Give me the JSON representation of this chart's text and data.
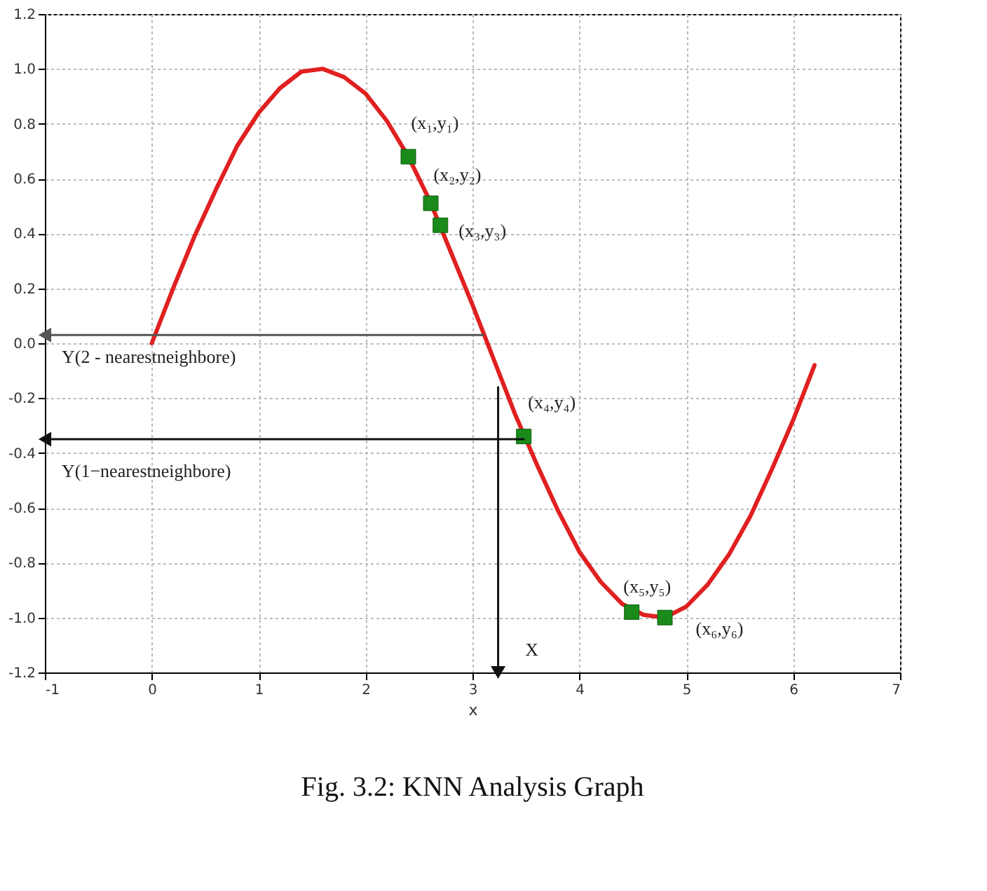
{
  "chart_data": {
    "type": "line",
    "title": "Fig. 3.2: KNN Analysis Graph",
    "xlabel": "x",
    "xlim": [
      -1,
      7
    ],
    "ylim": [
      -1.2,
      1.2
    ],
    "xticks": [
      -1,
      0,
      1,
      2,
      3,
      4,
      5,
      6,
      7
    ],
    "yticks": [
      {
        "value": -1.2,
        "label": "-1.2"
      },
      {
        "value": -1.0,
        "label": "-1.0"
      },
      {
        "value": -0.8,
        "label": "-0.8"
      },
      {
        "value": -0.6,
        "label": "-0.6"
      },
      {
        "value": -0.4,
        "label": "-0.4"
      },
      {
        "value": -0.2,
        "label": "-0.2"
      },
      {
        "value": 0,
        "label": "0.0"
      },
      {
        "value": 0.2,
        "label": "0.2"
      },
      {
        "value": 0.4,
        "label": "0.4"
      },
      {
        "value": 0.6,
        "label": "0.6"
      },
      {
        "value": 0.8,
        "label": "0.8"
      },
      {
        "value": 1.0,
        "label": "1.0"
      },
      {
        "value": 1.2,
        "label": "1.2"
      }
    ],
    "grid": true,
    "line_style": "solid",
    "series": [
      {
        "color": "#e02020",
        "x": [
          0,
          0.2,
          0.4,
          0.6,
          0.8,
          1,
          1.2,
          1.4,
          1.6,
          1.8,
          2,
          2.2,
          2.4,
          2.6,
          2.8,
          3,
          3.2,
          3.4,
          3.6,
          3.8,
          4,
          4.2,
          4.4,
          4.6,
          4.8,
          5,
          5.2,
          5.4,
          5.6,
          5.8,
          6,
          6.2
        ],
        "values": [
          0,
          0.2,
          0.39,
          0.56,
          0.72,
          0.84,
          0.93,
          0.99,
          1.0,
          0.97,
          0.91,
          0.81,
          0.68,
          0.52,
          0.33,
          0.14,
          -0.06,
          -0.26,
          -0.44,
          -0.61,
          -0.76,
          -0.87,
          -0.95,
          -0.99,
          -1.0,
          -0.96,
          -0.88,
          -0.77,
          -0.63,
          -0.46,
          -0.28,
          -0.08
        ]
      },
      {
        "type": "scatter",
        "color": "#1a8a1a",
        "marker": "square",
        "x": [
          2.4,
          2.61,
          2.7,
          3.48,
          4.49,
          4.8
        ],
        "values": [
          0.68,
          0.51,
          0.43,
          -0.34,
          -0.98,
          -1.0
        ]
      },
      {
        "type": "line",
        "color": "#555555",
        "marker": "triangle",
        "x": [
          3.1,
          -1
        ],
        "values": [
          0.03,
          0.03
        ]
      },
      {
        "type": "line",
        "color": "#111111",
        "marker": "triangle",
        "x": [
          3.48,
          -1
        ],
        "values": [
          -0.35,
          -0.35
        ]
      },
      {
        "type": "line",
        "color": "#111111",
        "marker": "triangle",
        "x": [
          3.24,
          3.24
        ],
        "values": [
          -0.16,
          -1.2
        ]
      }
    ],
    "annotations": [
      {
        "text": "(x₁,y₁)",
        "x": 2.4,
        "y": 0.68
      },
      {
        "text": "(x₂,y₂)",
        "x": 2.61,
        "y": 0.51
      },
      {
        "text": "(x₃,y₃)",
        "x": 2.7,
        "y": 0.43
      },
      {
        "text": "(x₄,y₄)",
        "x": 3.48,
        "y": -0.34
      },
      {
        "text": "(x₅,y₅)",
        "x": 4.49,
        "y": -0.98
      },
      {
        "text": "(x₆,y₆)",
        "x": 4.8,
        "y": -1.0
      },
      {
        "text": "Y(2 - nearestneighbore)",
        "x": -1,
        "y": 0.03
      },
      {
        "text": "Y(1−nearestneighbore)",
        "x": -1,
        "y": -0.35
      },
      {
        "text": "X",
        "x": 3.24,
        "y": -1.2
      }
    ]
  }
}
